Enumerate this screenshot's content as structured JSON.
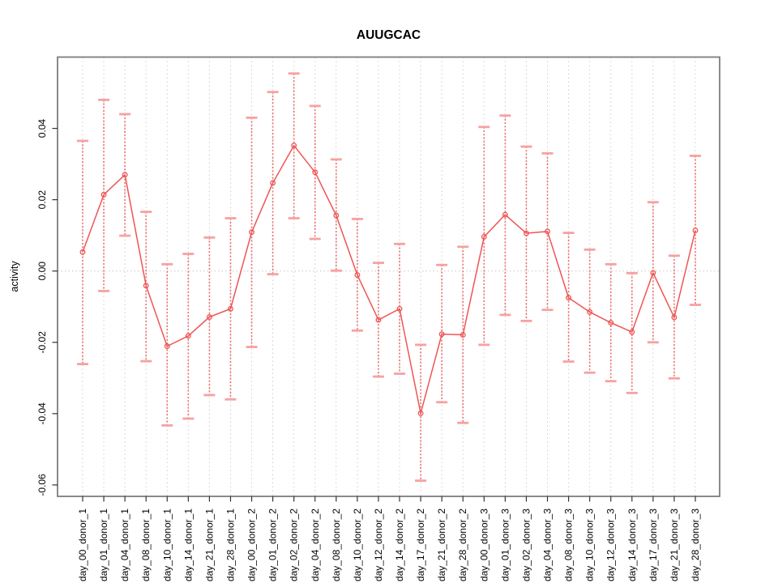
{
  "chart_data": {
    "type": "line",
    "title": "AUUGCAC",
    "xlabel": "",
    "ylabel": "activity",
    "categories": [
      "day_00_donor_1",
      "day_01_donor_1",
      "day_04_donor_1",
      "day_08_donor_1",
      "day_10_donor_1",
      "day_14_donor_1",
      "day_21_donor_1",
      "day_28_donor_1",
      "day_00_donor_2",
      "day_01_donor_2",
      "day_02_donor_2",
      "day_04_donor_2",
      "day_08_donor_2",
      "day_10_donor_2",
      "day_12_donor_2",
      "day_14_donor_2",
      "day_17_donor_2",
      "day_21_donor_2",
      "day_28_donor_2",
      "day_00_donor_3",
      "day_01_donor_3",
      "day_02_donor_3",
      "day_04_donor_3",
      "day_08_donor_3",
      "day_10_donor_3",
      "day_12_donor_3",
      "day_14_donor_3",
      "day_17_donor_3",
      "day_21_donor_3",
      "day_28_donor_3"
    ],
    "series": [
      {
        "name": "activity",
        "values": [
          0.0053,
          0.0214,
          0.027,
          -0.0041,
          -0.0211,
          -0.0182,
          -0.0129,
          -0.0106,
          0.0109,
          0.0247,
          0.0352,
          0.0277,
          0.0156,
          -0.0011,
          -0.0137,
          -0.0106,
          -0.0399,
          -0.0177,
          -0.0179,
          0.0096,
          0.0158,
          0.0106,
          0.0111,
          -0.0075,
          -0.0115,
          -0.0145,
          -0.0171,
          -0.0005,
          -0.013,
          0.0114
        ],
        "upper": [
          0.0365,
          0.048,
          0.044,
          0.0166,
          0.0019,
          0.0048,
          0.0094,
          0.0148,
          0.043,
          0.0502,
          0.0554,
          0.0463,
          0.0313,
          0.0146,
          0.0023,
          0.0076,
          -0.0207,
          0.0017,
          0.0068,
          0.0404,
          0.0436,
          0.0349,
          0.033,
          0.0107,
          0.006,
          0.0019,
          -0.0006,
          0.0193,
          0.0043,
          0.0323
        ],
        "lower": [
          -0.0261,
          -0.0056,
          0.0099,
          -0.0253,
          -0.0433,
          -0.0414,
          -0.0348,
          -0.036,
          -0.0213,
          -0.0009,
          0.0148,
          0.009,
          0.0001,
          -0.0167,
          -0.0296,
          -0.0288,
          -0.0588,
          -0.0368,
          -0.0426,
          -0.0207,
          -0.0123,
          -0.014,
          -0.0109,
          -0.0254,
          -0.0285,
          -0.0309,
          -0.0342,
          -0.02,
          -0.0301,
          -0.0095
        ]
      }
    ],
    "ylim": [
      -0.0632,
      0.06
    ],
    "yticks": [
      0.04,
      0.02,
      0.0,
      -0.02,
      -0.04,
      -0.06
    ],
    "ytick_labels": [
      "0.04",
      "0.02",
      "0.00",
      "-0.02",
      "-0.04",
      "-0.06"
    ],
    "grid": "vertical dotted gridline at each category; dotted horizontal line at y=0 only",
    "legend": "none",
    "error_bars": true,
    "colors": {
      "line": "#ee5555",
      "marker": "#ee5555",
      "error_bar": "#ef6e6e",
      "error_cap": "#f7a1a1",
      "grid": "#cfcfcf",
      "zero_line": "#c8c8c8",
      "box": "#7d7d7d",
      "tick": "#333333",
      "text": "#000000"
    }
  }
}
